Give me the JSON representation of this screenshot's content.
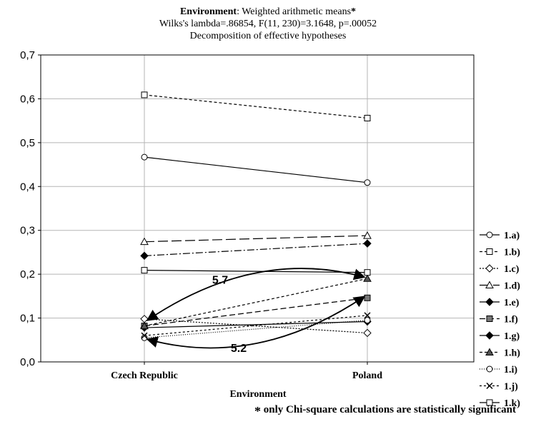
{
  "header": {
    "title_prefix": "Environment",
    "title_rest": ": Weighted arithmetic means",
    "title_star": "*",
    "subtitle1": "Wilks's lambda=.86854,  F(11,  230)=3.1648,  p=.00052",
    "subtitle2": "Decomposition of effective hypotheses"
  },
  "footnote": {
    "star": "*",
    "text": " only Chi-square calculations are statistically significant"
  },
  "chart_data": {
    "type": "line",
    "title": "Environment: Weighted arithmetic means*",
    "subtitle": "Wilks's lambda=.86854,  F(11,  230)=3.1648,  p=.00052 / Decomposition of effective hypotheses",
    "xlabel": "Environment",
    "ylabel": "",
    "categories": [
      "Czech Republic",
      "Poland"
    ],
    "ylim": [
      0,
      0.7
    ],
    "yticks": [
      "0,0",
      "0,1",
      "0,2",
      "0,3",
      "0,4",
      "0,5",
      "0,6",
      "0,7"
    ],
    "grid": true,
    "legend_position": "right",
    "series": [
      {
        "name": "1.a)",
        "values": [
          0.467,
          0.409
        ],
        "dash": "",
        "marker": "circle",
        "fill": "#ffffff"
      },
      {
        "name": "1.b)",
        "values": [
          0.609,
          0.556
        ],
        "dash": "4,3",
        "marker": "square",
        "fill": "#ffffff"
      },
      {
        "name": "1.c)",
        "values": [
          0.098,
          0.066
        ],
        "dash": "2,2",
        "marker": "diamond",
        "fill": "#ffffff"
      },
      {
        "name": "1.d)",
        "values": [
          0.274,
          0.288
        ],
        "dash": "14,5",
        "marker": "triangle",
        "fill": "#ffffff"
      },
      {
        "name": "1.e)",
        "values": [
          0.242,
          0.27
        ],
        "dash": "10,3,2,3",
        "marker": "diamond",
        "fill": "#000000"
      },
      {
        "name": "1.f)",
        "values": [
          0.082,
          0.146
        ],
        "dash": "8,4",
        "marker": "square",
        "fill": "#777777"
      },
      {
        "name": "1.g)",
        "values": [
          0.078,
          0.092
        ],
        "dash": "",
        "marker": "diamond",
        "fill": "#000000"
      },
      {
        "name": "1.h)",
        "values": [
          0.082,
          0.19
        ],
        "dash": "4,3",
        "marker": "triangle",
        "fill": "#555555"
      },
      {
        "name": "1.i)",
        "values": [
          0.055,
          0.095
        ],
        "dash": "1,2",
        "marker": "circle",
        "fill": "#ffffff"
      },
      {
        "name": "1.j)",
        "values": [
          0.06,
          0.106
        ],
        "dash": "3,3",
        "marker": "x",
        "fill": "#ffffff"
      },
      {
        "name": "1.k)",
        "values": [
          0.209,
          0.204
        ],
        "dash": "",
        "marker": "square",
        "fill": "#ffffff"
      }
    ],
    "annotations": [
      {
        "text": "5.7",
        "from_series": "1.h)",
        "to_series": "1.c)"
      },
      {
        "text": "5.2",
        "from_series": "1.f)",
        "to_series": "1.i)"
      }
    ]
  }
}
